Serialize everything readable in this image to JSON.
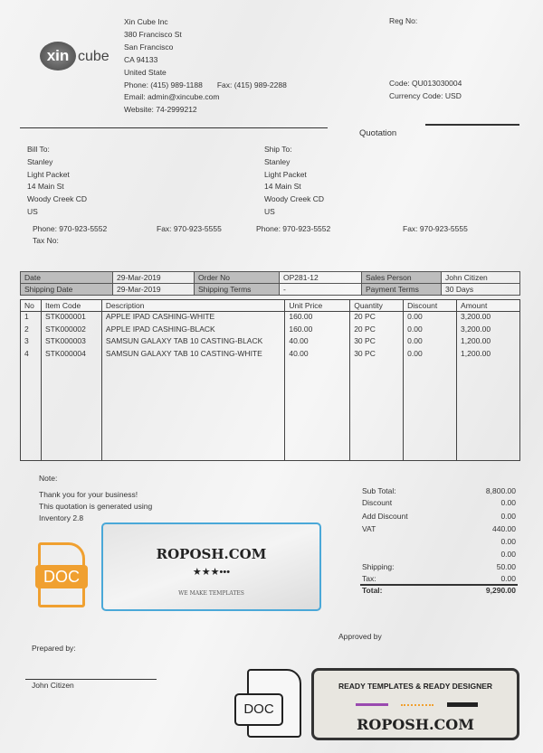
{
  "company": {
    "logo_text_a": "xin",
    "logo_text_b": "cube",
    "name": "Xin Cube Inc",
    "address1": "380 Francisco St",
    "city": "San Francisco",
    "state_zip": "CA 94133",
    "country": "United State",
    "phone": "Phone:  (415) 989-1188",
    "fax": "Fax: (415) 989-2288",
    "email": "Email:  admin@xincube.com",
    "website": "Website: 74-2999212"
  },
  "meta": {
    "reg_no": "Reg No:",
    "code": "Code: QU013030004",
    "currency": "Currency Code: USD",
    "doc_title": "Quotation"
  },
  "bill_to": {
    "label": "Bill To:",
    "lines": [
      "Stanley",
      "Light Packet",
      "14 Main St",
      "Woody Creek CD",
      "US"
    ],
    "phone": "Phone:  970-923-5552",
    "fax": "Fax: 970-923-5555",
    "tax": "Tax No:"
  },
  "ship_to": {
    "label": "Ship To:",
    "lines": [
      "Stanley",
      "Light Packet",
      "14 Main St",
      "Woody Creek CD",
      "US"
    ],
    "phone": "Phone:  970-923-5552",
    "fax": "Fax: 970-923-5555"
  },
  "info": {
    "date_label": "Date",
    "date": "29-Mar-2019",
    "order_label": "Order No",
    "order": "OP281-12",
    "sales_label": "Sales Person",
    "sales": "John Citizen",
    "ship_date_label": "Shipping Date",
    "ship_date": "29-Mar-2019",
    "ship_terms_label": "Shipping Terms",
    "ship_terms": "-",
    "pay_label": "Payment Terms",
    "pay": "30 Days"
  },
  "items": {
    "headers": [
      "No",
      "Item Code",
      "Description",
      "Unit Price",
      "Quantity",
      "Discount",
      "Amount"
    ],
    "rows": [
      [
        "1",
        "STK000001",
        "APPLE IPAD CASHING-WHITE",
        "160.00",
        "20 PC",
        "0.00",
        "3,200.00"
      ],
      [
        "2",
        "STK000002",
        "APPLE IPAD CASHING-BLACK",
        "160.00",
        "20 PC",
        "0.00",
        "3,200.00"
      ],
      [
        "3",
        "STK000003",
        "SAMSUN GALAXY TAB 10 CASTING-BLACK",
        "40.00",
        "30 PC",
        "0.00",
        "1,200.00"
      ],
      [
        "4",
        "STK000004",
        "SAMSUN GALAXY TAB 10 CASTING-WHITE",
        "40.00",
        "30 PC",
        "0.00",
        "1,200.00"
      ]
    ]
  },
  "note": {
    "label": "Note:",
    "line1": "Thank you for your business!",
    "line2": "This quotation is generated using",
    "line3": "Inventory 2.8"
  },
  "totals": [
    [
      "Sub Total:",
      "8,800.00"
    ],
    [
      "Discount",
      "0.00"
    ],
    [
      "Add Discount",
      "0.00"
    ],
    [
      "VAT",
      "440.00"
    ],
    [
      "",
      "0.00"
    ],
    [
      "",
      "0.00"
    ],
    [
      "Shipping:",
      "50.00"
    ],
    [
      "Tax:",
      "0.00"
    ],
    [
      "Total:",
      "9,290.00"
    ]
  ],
  "sign": {
    "approved": "Approved by",
    "prepared": "Prepared by:",
    "name": "John Citizen"
  },
  "watermark": {
    "doc": "DOC",
    "brand": "ROPOSH.COM",
    "stars": "★★★•••",
    "tagline": "WE MAKE TEMPLATES",
    "banner": "READY TEMPLATES & READY DESIGNER",
    "accent": "#f0a030",
    "border": "#4aa8d8"
  }
}
